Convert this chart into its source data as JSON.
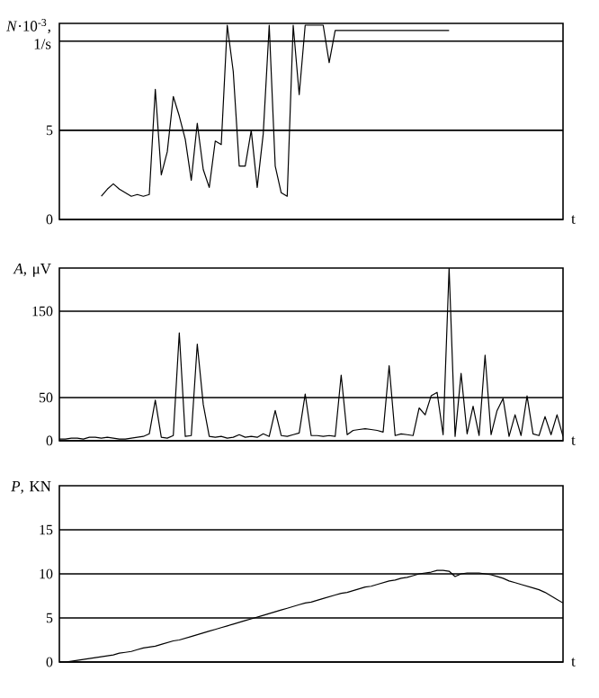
{
  "chart_data": [
    {
      "type": "line",
      "ylabel": "*N*·10$^{-3}$, 1/s",
      "xlabel": "t",
      "grid": "y",
      "marker": "none",
      "line_style": "solid",
      "categories": [
        null,
        null,
        null,
        null,
        null,
        null,
        null,
        null,
        null,
        null,
        null,
        null,
        null,
        null,
        null,
        null,
        null,
        null,
        null,
        null,
        null,
        null,
        null,
        null,
        null,
        null,
        null,
        null,
        null,
        null,
        null,
        null,
        null,
        null,
        null,
        null,
        null,
        null,
        null,
        null,
        null,
        null,
        null,
        null,
        null,
        null,
        null,
        null,
        null,
        null,
        null,
        null,
        null,
        null,
        null,
        null,
        null,
        null,
        null,
        null,
        null,
        null,
        null,
        null,
        null,
        null,
        null,
        null,
        null,
        null,
        null,
        null,
        null,
        null,
        null,
        null,
        null,
        null,
        null,
        null,
        null,
        null,
        null,
        null,
        null
      ],
      "series": [
        {
          "color": "#000000",
          "values": [
            null,
            null,
            null,
            null,
            null,
            null,
            null,
            1.3,
            1.7,
            2.0,
            1.7,
            1.5,
            1.3,
            1.4,
            1.3,
            1.4,
            7.3,
            2.5,
            3.8,
            6.9,
            5.8,
            4.5,
            2.2,
            5.4,
            2.8,
            1.8,
            4.4,
            4.2,
            10.9,
            8.3,
            3.0,
            3.0,
            5.0,
            1.8,
            4.8,
            10.9,
            3.0,
            1.5,
            1.3,
            10.9,
            7.0,
            10.9,
            10.9,
            10.9,
            10.9,
            8.8,
            10.6,
            10.6,
            10.6,
            10.6,
            10.6,
            10.6,
            10.6,
            10.6,
            10.6,
            10.6,
            10.6,
            10.6,
            10.6,
            10.6,
            10.6,
            10.6,
            10.6,
            10.6,
            10.6,
            10.6,
            null,
            null,
            null,
            null,
            null,
            null,
            null,
            null,
            null,
            null,
            null,
            null,
            null,
            null,
            null,
            null,
            null,
            null,
            null
          ]
        }
      ],
      "ylim": [
        0,
        11
      ],
      "yticks": [
        0,
        5,
        {
          "value": 10,
          "label": null
        }
      ]
    },
    {
      "type": "line",
      "ylabel": "*A*, μV",
      "xlabel": "t",
      "grid": "y",
      "marker": "none",
      "line_style": "solid",
      "categories": [
        null,
        null,
        null,
        null,
        null,
        null,
        null,
        null,
        null,
        null,
        null,
        null,
        null,
        null,
        null,
        null,
        null,
        null,
        null,
        null,
        null,
        null,
        null,
        null,
        null,
        null,
        null,
        null,
        null,
        null,
        null,
        null,
        null,
        null,
        null,
        null,
        null,
        null,
        null,
        null,
        null,
        null,
        null,
        null,
        null,
        null,
        null,
        null,
        null,
        null,
        null,
        null,
        null,
        null,
        null,
        null,
        null,
        null,
        null,
        null,
        null,
        null,
        null,
        null,
        null,
        null,
        null,
        null,
        null,
        null,
        null,
        null,
        null,
        null,
        null,
        null,
        null,
        null,
        null,
        null,
        null,
        null,
        null,
        null,
        null
      ],
      "series": [
        {
          "color": "#000000",
          "values": [
            2,
            2,
            3,
            3,
            2,
            4,
            4,
            3,
            4,
            3,
            2,
            2,
            3,
            4,
            5,
            8,
            47,
            4,
            3,
            6,
            125,
            5,
            6,
            112,
            42,
            5,
            4,
            5,
            3,
            4,
            7,
            4,
            5,
            4,
            8,
            5,
            35,
            6,
            5,
            7,
            9,
            54,
            6,
            6,
            5,
            6,
            5,
            76,
            7,
            12,
            13,
            14,
            13,
            12,
            10,
            87,
            6,
            8,
            7,
            6,
            38,
            30,
            52,
            56,
            7,
            200,
            5,
            78,
            8,
            40,
            6,
            99,
            7,
            35,
            49,
            5,
            30,
            6,
            52,
            8,
            6,
            28,
            7,
            30,
            5
          ]
        }
      ],
      "ylim": [
        0,
        200
      ],
      "yticks": [
        0,
        50,
        150
      ]
    },
    {
      "type": "line",
      "ylabel": "*P*, KN",
      "xlabel": "t",
      "grid": "y",
      "marker": "none",
      "line_style": "solid",
      "categories": [
        null,
        null,
        null,
        null,
        null,
        null,
        null,
        null,
        null,
        null,
        null,
        null,
        null,
        null,
        null,
        null,
        null,
        null,
        null,
        null,
        null,
        null,
        null,
        null,
        null,
        null,
        null,
        null,
        null,
        null,
        null,
        null,
        null,
        null,
        null,
        null,
        null,
        null,
        null,
        null,
        null,
        null,
        null,
        null,
        null,
        null,
        null,
        null,
        null,
        null,
        null,
        null,
        null,
        null,
        null,
        null,
        null,
        null,
        null,
        null,
        null,
        null,
        null,
        null,
        null,
        null,
        null,
        null,
        null,
        null,
        null,
        null,
        null,
        null,
        null,
        null,
        null,
        null,
        null,
        null,
        null,
        null,
        null,
        null,
        null
      ],
      "series": [
        {
          "color": "#000000",
          "values": [
            0.0,
            0.0,
            0.1,
            0.2,
            0.3,
            0.4,
            0.5,
            0.6,
            0.7,
            0.8,
            1.0,
            1.1,
            1.2,
            1.4,
            1.6,
            1.7,
            1.8,
            2.0,
            2.2,
            2.4,
            2.5,
            2.7,
            2.9,
            3.1,
            3.3,
            3.5,
            3.7,
            3.9,
            4.1,
            4.3,
            4.5,
            4.7,
            4.9,
            5.1,
            5.3,
            5.5,
            5.7,
            5.9,
            6.1,
            6.3,
            6.5,
            6.7,
            6.8,
            7.0,
            7.2,
            7.4,
            7.6,
            7.8,
            7.9,
            8.1,
            8.3,
            8.5,
            8.6,
            8.8,
            9.0,
            9.2,
            9.3,
            9.5,
            9.6,
            9.8,
            10.0,
            10.1,
            10.2,
            10.4,
            10.4,
            10.3,
            9.7,
            10.0,
            10.1,
            10.1,
            10.1,
            10.0,
            9.9,
            9.7,
            9.5,
            9.2,
            9.0,
            8.8,
            8.6,
            8.4,
            8.2,
            7.9,
            7.5,
            7.1,
            6.7
          ]
        }
      ],
      "ylim": [
        0,
        20
      ],
      "yticks": [
        0,
        5,
        10,
        15
      ]
    }
  ]
}
